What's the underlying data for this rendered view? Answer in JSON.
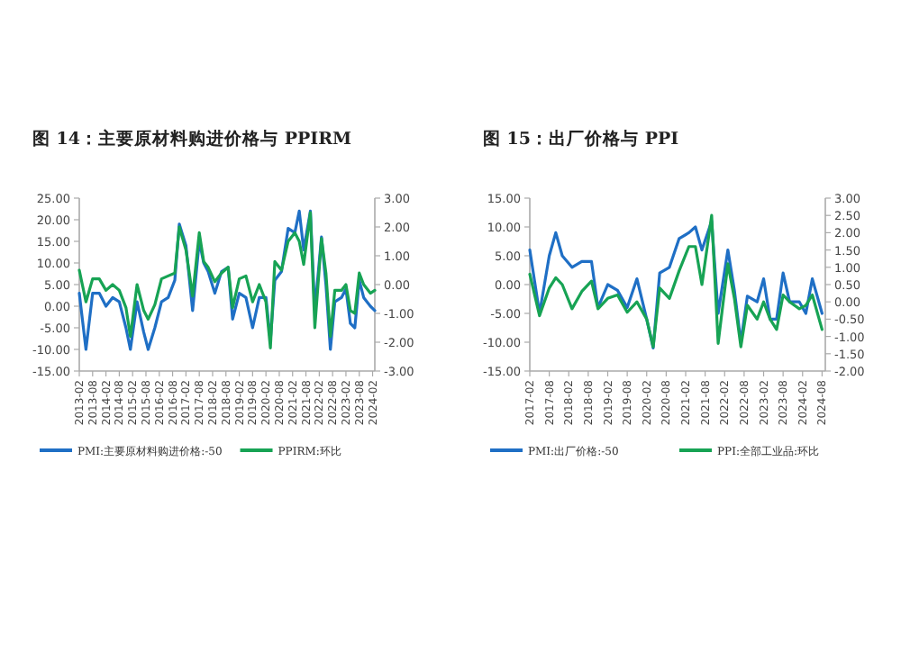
{
  "chart_data": [
    {
      "type": "line",
      "title": "图 14：主要原材料购进价格与 PPIRM",
      "legend": "bottom",
      "grid": false,
      "xlim": [
        "2013-02",
        "2024-03"
      ],
      "xticks": [
        "2013-02",
        "2013-08",
        "2014-02",
        "2014-08",
        "2015-02",
        "2015-08",
        "2016-02",
        "2016-08",
        "2017-02",
        "2017-08",
        "2018-02",
        "2018-08",
        "2019-02",
        "2019-08",
        "2020-02",
        "2020-08",
        "2021-02",
        "2021-08",
        "2022-02",
        "2022-08",
        "2023-02",
        "2023-08",
        "2024-02"
      ],
      "ylim": [
        -15,
        25
      ],
      "yticks": [
        {
          "value": -15,
          "label": "-15.00"
        },
        {
          "value": -10,
          "label": "-10.00"
        },
        {
          "value": -5,
          "label": "-5.00"
        },
        {
          "value": 0,
          "label": "0.00"
        },
        {
          "value": 5,
          "label": "5.00"
        },
        {
          "value": 10,
          "label": "10.00"
        },
        {
          "value": 15,
          "label": "15.00"
        },
        {
          "value": 20,
          "label": "20.00"
        },
        {
          "value": 25,
          "label": "25.00"
        }
      ],
      "y2lim": [
        -3,
        3
      ],
      "y2ticks": [
        {
          "value": -3,
          "label": "-3.00"
        },
        {
          "value": -2,
          "label": "-2.00"
        },
        {
          "value": -1,
          "label": "-1.00"
        },
        {
          "value": 0,
          "label": "0.00"
        },
        {
          "value": 1,
          "label": "1.00"
        },
        {
          "value": 2,
          "label": "2.00"
        },
        {
          "value": 3,
          "label": "3.00"
        }
      ],
      "series": [
        {
          "name": "PMI:主要原材料购进价格:-50",
          "color": "#1f6fc5",
          "x": [
            "2013-02",
            "2013-05",
            "2013-08",
            "2013-11",
            "2014-02",
            "2014-05",
            "2014-08",
            "2014-11",
            "2015-01",
            "2015-04",
            "2015-07",
            "2015-09",
            "2015-12",
            "2016-03",
            "2016-06",
            "2016-09",
            "2016-11",
            "2017-02",
            "2017-05",
            "2017-08",
            "2017-10",
            "2017-12",
            "2018-03",
            "2018-06",
            "2018-09",
            "2018-11",
            "2019-02",
            "2019-05",
            "2019-08",
            "2019-11",
            "2020-02",
            "2020-04",
            "2020-06",
            "2020-09",
            "2020-12",
            "2021-03",
            "2021-05",
            "2021-07",
            "2021-10",
            "2021-12",
            "2022-03",
            "2022-05",
            "2022-07",
            "2022-09",
            "2022-12",
            "2023-02",
            "2023-04",
            "2023-06",
            "2023-08",
            "2023-10",
            "2024-01",
            "2024-03"
          ],
          "values": [
            3,
            -10,
            3,
            3,
            0,
            2,
            1,
            -5,
            -10,
            1,
            -6,
            -10,
            -5,
            1,
            2,
            6,
            19,
            14,
            -1,
            15,
            10,
            8,
            3,
            8,
            9,
            -3,
            3,
            2,
            -5,
            2,
            2,
            -8,
            6,
            8,
            18,
            17,
            22,
            13,
            22,
            -1,
            16,
            5,
            -10,
            1,
            2,
            4,
            -4,
            -5,
            6,
            2,
            0,
            -1
          ]
        },
        {
          "name": "PPIRM:环比",
          "color": "#17a354",
          "axis": "y2",
          "x": [
            "2013-02",
            "2013-05",
            "2013-08",
            "2013-11",
            "2014-02",
            "2014-05",
            "2014-08",
            "2014-11",
            "2015-01",
            "2015-04",
            "2015-07",
            "2015-09",
            "2015-12",
            "2016-03",
            "2016-06",
            "2016-09",
            "2016-11",
            "2017-02",
            "2017-05",
            "2017-08",
            "2017-10",
            "2017-12",
            "2018-03",
            "2018-06",
            "2018-09",
            "2018-11",
            "2019-02",
            "2019-05",
            "2019-08",
            "2019-11",
            "2020-02",
            "2020-04",
            "2020-06",
            "2020-09",
            "2020-12",
            "2021-03",
            "2021-05",
            "2021-07",
            "2021-10",
            "2021-12",
            "2022-03",
            "2022-05",
            "2022-07",
            "2022-09",
            "2022-12",
            "2023-02",
            "2023-04",
            "2023-06",
            "2023-08",
            "2023-10",
            "2024-01",
            "2024-03"
          ],
          "values": [
            0.5,
            -0.6,
            0.2,
            0.2,
            -0.2,
            0,
            -0.2,
            -0.8,
            -1.8,
            0,
            -0.9,
            -1.2,
            -0.7,
            0.2,
            0.3,
            0.4,
            2.0,
            1.2,
            -0.4,
            1.8,
            0.8,
            0.6,
            0.1,
            0.4,
            0.6,
            -0.8,
            0.2,
            0.3,
            -0.6,
            0,
            -0.6,
            -2.2,
            0.8,
            0.5,
            1.5,
            1.8,
            1.5,
            0.7,
            2.5,
            -1.5,
            1.6,
            0.4,
            -1.8,
            -0.2,
            -0.2,
            0,
            -0.9,
            -1.0,
            0.4,
            0,
            -0.3,
            -0.2
          ]
        }
      ]
    },
    {
      "type": "line",
      "title": "图 15：出厂价格与 PPI",
      "legend": "bottom",
      "grid": false,
      "xlim": [
        "2017-02",
        "2024-09"
      ],
      "xticks": [
        "2017-02",
        "2017-08",
        "2018-02",
        "2018-08",
        "2019-02",
        "2019-08",
        "2020-02",
        "2020-08",
        "2021-02",
        "2021-08",
        "2022-02",
        "2022-08",
        "2023-02",
        "2023-08",
        "2024-02",
        "2024-08"
      ],
      "ylim": [
        -15,
        15
      ],
      "yticks": [
        {
          "value": -15,
          "label": "-15.00"
        },
        {
          "value": -10,
          "label": "-10.00"
        },
        {
          "value": -5,
          "label": "-5.00"
        },
        {
          "value": 0,
          "label": "0.00"
        },
        {
          "value": 5,
          "label": "5.00"
        },
        {
          "value": 10,
          "label": "10.00"
        },
        {
          "value": 15,
          "label": "15.00"
        }
      ],
      "y2lim": [
        -2,
        3
      ],
      "y2ticks": [
        {
          "value": -2,
          "label": "-2.00"
        },
        {
          "value": -1.5,
          "label": "-1.50"
        },
        {
          "value": -1,
          "label": "-1.00"
        },
        {
          "value": -0.5,
          "label": "-0.50"
        },
        {
          "value": 0,
          "label": "0.00"
        },
        {
          "value": 0.5,
          "label": "0.50"
        },
        {
          "value": 1,
          "label": "1.00"
        },
        {
          "value": 1.5,
          "label": "1.50"
        },
        {
          "value": 2,
          "label": "2.00"
        },
        {
          "value": 2.5,
          "label": "2.50"
        },
        {
          "value": 3,
          "label": "3.00"
        }
      ],
      "series": [
        {
          "name": "PMI:出厂价格:-50",
          "color": "#1f6fc5",
          "x": [
            "2017-02",
            "2017-05",
            "2017-08",
            "2017-10",
            "2017-12",
            "2018-03",
            "2018-06",
            "2018-09",
            "2018-11",
            "2019-02",
            "2019-05",
            "2019-08",
            "2019-11",
            "2020-02",
            "2020-04",
            "2020-06",
            "2020-09",
            "2020-12",
            "2021-03",
            "2021-05",
            "2021-07",
            "2021-10",
            "2021-12",
            "2022-03",
            "2022-05",
            "2022-07",
            "2022-09",
            "2022-12",
            "2023-02",
            "2023-04",
            "2023-06",
            "2023-08",
            "2023-10",
            "2024-01",
            "2024-03",
            "2024-05",
            "2024-08"
          ],
          "values": [
            6,
            -5,
            5,
            9,
            5,
            3,
            4,
            4,
            -4,
            0,
            -1,
            -4,
            1,
            -6,
            -11,
            2,
            3,
            8,
            9,
            10,
            6,
            11,
            -5,
            6,
            -1,
            -10,
            -2,
            -3,
            1,
            -6,
            -6,
            2,
            -3,
            -3,
            -5,
            1,
            -5
          ]
        },
        {
          "name": "PPI:全部工业品:环比",
          "color": "#17a354",
          "axis": "y2",
          "x": [
            "2017-02",
            "2017-05",
            "2017-08",
            "2017-10",
            "2017-12",
            "2018-03",
            "2018-06",
            "2018-09",
            "2018-11",
            "2019-02",
            "2019-05",
            "2019-08",
            "2019-11",
            "2020-02",
            "2020-04",
            "2020-06",
            "2020-09",
            "2020-12",
            "2021-03",
            "2021-05",
            "2021-07",
            "2021-10",
            "2021-12",
            "2022-03",
            "2022-05",
            "2022-07",
            "2022-09",
            "2022-12",
            "2023-02",
            "2023-04",
            "2023-06",
            "2023-08",
            "2023-10",
            "2024-01",
            "2024-03",
            "2024-05",
            "2024-08"
          ],
          "values": [
            0.8,
            -0.4,
            0.4,
            0.7,
            0.5,
            -0.2,
            0.3,
            0.6,
            -0.2,
            0.1,
            0.2,
            -0.3,
            0,
            -0.5,
            -1.3,
            0.4,
            0.1,
            0.9,
            1.6,
            1.6,
            0.5,
            2.5,
            -1.2,
            1.1,
            0.1,
            -1.3,
            -0.1,
            -0.5,
            0,
            -0.5,
            -0.8,
            0.2,
            0,
            -0.2,
            -0.1,
            0.2,
            -0.8
          ]
        }
      ]
    }
  ]
}
